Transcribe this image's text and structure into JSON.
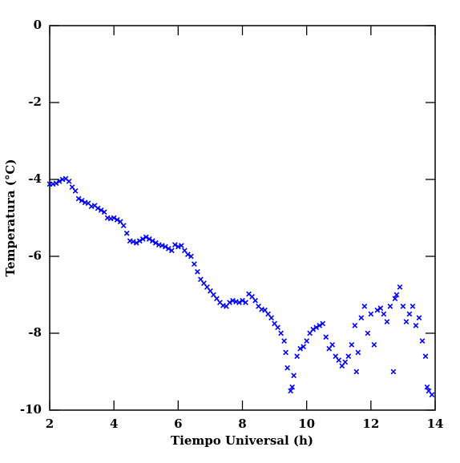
{
  "chart_data": {
    "type": "scatter",
    "x_label": "Tiempo Universal (h)",
    "y_label": "Temperatura (°C)",
    "xlim": [
      2,
      14
    ],
    "ylim": [
      -10,
      0
    ],
    "xticks": [
      2,
      4,
      6,
      8,
      10,
      12,
      14
    ],
    "yticks": [
      0,
      -2,
      -4,
      -6,
      -8,
      -10
    ],
    "series": [
      {
        "color": "#0000ff",
        "x": [
          2.0,
          2.1,
          2.2,
          2.3,
          2.4,
          2.5,
          2.6,
          2.7,
          2.8,
          2.9,
          3.0,
          3.1,
          3.2,
          3.3,
          3.4,
          3.5,
          3.6,
          3.7,
          3.8,
          3.9,
          4.0,
          4.1,
          4.2,
          4.3,
          4.4,
          4.5,
          4.6,
          4.7,
          4.8,
          4.9,
          5.0,
          5.1,
          5.2,
          5.3,
          5.4,
          5.5,
          5.6,
          5.7,
          5.8,
          5.9,
          6.0,
          6.1,
          6.2,
          6.3,
          6.4,
          6.5,
          6.6,
          6.7,
          6.8,
          6.9,
          7.0,
          7.1,
          7.2,
          7.3,
          7.4,
          7.5,
          7.6,
          7.7,
          7.8,
          7.9,
          8.0,
          8.1,
          8.2,
          8.3,
          8.4,
          8.5,
          8.6,
          8.7,
          8.8,
          8.9,
          9.0,
          9.1,
          9.2,
          9.3,
          9.35,
          9.4,
          9.5,
          9.55,
          9.6,
          9.7,
          9.8,
          9.9,
          10.0,
          10.1,
          10.2,
          10.3,
          10.4,
          10.5,
          10.6,
          10.7,
          10.8,
          10.9,
          11.0,
          11.1,
          11.2,
          11.3,
          11.4,
          11.5,
          11.55,
          11.6,
          11.7,
          11.8,
          11.9,
          12.0,
          12.1,
          12.2,
          12.3,
          12.4,
          12.5,
          12.6,
          12.7,
          12.75,
          12.8,
          12.9,
          13.0,
          13.1,
          13.2,
          13.3,
          13.4,
          13.5,
          13.6,
          13.7,
          13.75,
          13.8,
          13.9
        ],
        "values": [
          -4.12,
          -4.12,
          -4.1,
          -4.05,
          -4.0,
          -3.98,
          -4.05,
          -4.2,
          -4.3,
          -4.5,
          -4.55,
          -4.6,
          -4.62,
          -4.7,
          -4.68,
          -4.75,
          -4.8,
          -4.85,
          -5.0,
          -5.02,
          -5.0,
          -5.05,
          -5.1,
          -5.2,
          -5.4,
          -5.6,
          -5.62,
          -5.65,
          -5.6,
          -5.55,
          -5.5,
          -5.55,
          -5.6,
          -5.65,
          -5.7,
          -5.72,
          -5.75,
          -5.8,
          -5.85,
          -5.7,
          -5.75,
          -5.72,
          -5.85,
          -5.95,
          -6.0,
          -6.2,
          -6.4,
          -6.6,
          -6.7,
          -6.8,
          -6.9,
          -7.0,
          -7.1,
          -7.2,
          -7.28,
          -7.3,
          -7.2,
          -7.15,
          -7.18,
          -7.2,
          -7.15,
          -7.2,
          -6.98,
          -7.05,
          -7.15,
          -7.3,
          -7.38,
          -7.4,
          -7.5,
          -7.6,
          -7.75,
          -7.85,
          -8.0,
          -8.2,
          -8.5,
          -8.9,
          -9.5,
          -9.4,
          -9.1,
          -8.6,
          -8.4,
          -8.35,
          -8.2,
          -8.0,
          -7.9,
          -7.85,
          -7.8,
          -7.75,
          -8.1,
          -8.4,
          -8.3,
          -8.6,
          -8.7,
          -8.85,
          -8.75,
          -8.6,
          -8.3,
          -7.8,
          -9.0,
          -8.5,
          -7.6,
          -7.3,
          -8.0,
          -7.5,
          -8.3,
          -7.4,
          -7.35,
          -7.5,
          -7.7,
          -7.3,
          -9.0,
          -7.1,
          -7.0,
          -6.8,
          -7.3,
          -7.7,
          -7.5,
          -7.3,
          -7.8,
          -7.6,
          -8.2,
          -8.6,
          -9.4,
          -9.5,
          -9.6
        ]
      }
    ]
  }
}
